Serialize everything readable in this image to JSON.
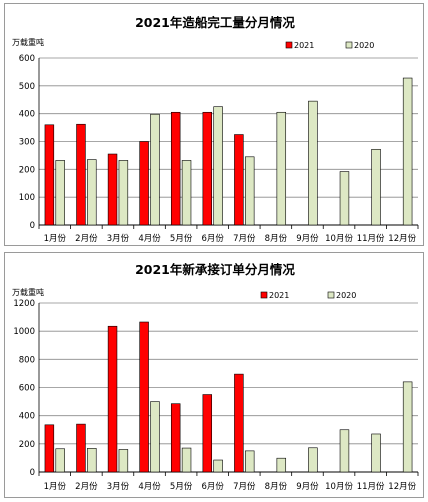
{
  "chart_data": [
    {
      "type": "bar",
      "title": "2021年造船完工量分月情况",
      "unit_label": "万载重吨",
      "categories": [
        "1月份",
        "2月份",
        "3月份",
        "4月份",
        "5月份",
        "6月份",
        "7月份",
        "8月份",
        "9月份",
        "10月份",
        "11月份",
        "12月份"
      ],
      "series": [
        {
          "name": "2021",
          "color": "#ff0000",
          "values": [
            360,
            362,
            255,
            300,
            405,
            405,
            325,
            null,
            null,
            null,
            null,
            null
          ]
        },
        {
          "name": "2020",
          "color": "#dde8c4",
          "values": [
            232,
            235,
            232,
            398,
            232,
            425,
            245,
            405,
            445,
            192,
            272,
            528
          ]
        }
      ],
      "ylim": [
        0,
        600
      ],
      "yticks": [
        0,
        100,
        200,
        300,
        400,
        500,
        600
      ],
      "grid": true,
      "legend_position": "top-right"
    },
    {
      "type": "bar",
      "title": "2021年新承接订单分月情况",
      "unit_label": "万载重吨",
      "categories": [
        "1月份",
        "2月份",
        "3月份",
        "4月份",
        "5月份",
        "6月份",
        "7月份",
        "8月份",
        "9月份",
        "10月份",
        "11月份",
        "12月份"
      ],
      "series": [
        {
          "name": "2021",
          "color": "#ff0000",
          "values": [
            335,
            340,
            1035,
            1065,
            485,
            550,
            695,
            null,
            null,
            null,
            null,
            null
          ]
        },
        {
          "name": "2020",
          "color": "#dde8c4",
          "values": [
            165,
            168,
            160,
            500,
            170,
            85,
            150,
            98,
            172,
            300,
            270,
            640
          ]
        }
      ],
      "ylim": [
        0,
        1200
      ],
      "yticks": [
        0,
        200,
        400,
        600,
        800,
        1000,
        1200
      ],
      "grid": true,
      "legend_position": "top-right"
    }
  ]
}
